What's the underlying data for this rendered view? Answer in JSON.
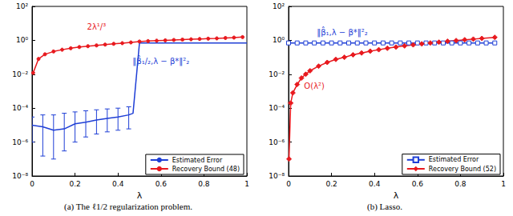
{
  "chart_data": [
    {
      "type": "line",
      "title": "(a) The ℓ1/2 regularization problem.",
      "x_label": "λ",
      "xlim": [
        0,
        1
      ],
      "xticks": [
        0,
        0.2,
        0.4,
        0.6,
        0.8,
        1
      ],
      "ylim": [
        1e-08,
        100
      ],
      "yticks": [
        {
          "value": 1e-08,
          "label": "10⁻⁸"
        },
        {
          "value": 1e-06,
          "label": "10⁻⁶"
        },
        {
          "value": 0.0001,
          "label": "10⁻⁴"
        },
        {
          "value": 0.01,
          "label": "10⁻²"
        },
        {
          "value": 1,
          "label": "10⁰"
        },
        {
          "value": 100,
          "label": "10²"
        }
      ],
      "log": "y",
      "grid": false,
      "legend": "lower right",
      "series": [
        {
          "name": "Estimated Error",
          "color": "#1f3fd6",
          "marker": "none",
          "line_style": "solid",
          "x": [
            0,
            0.05,
            0.1,
            0.15,
            0.2,
            0.25,
            0.3,
            0.35,
            0.4,
            0.45,
            0.47,
            0.5,
            0.55,
            0.6,
            0.65,
            0.7,
            0.75,
            0.8,
            0.85,
            0.9,
            0.95,
            1
          ],
          "values": [
            1e-05,
            8e-06,
            5e-06,
            6e-06,
            1.2e-05,
            1.5e-05,
            2e-05,
            2.5e-05,
            3e-05,
            4e-05,
            5e-05,
            0.7,
            0.7,
            0.7,
            0.7,
            0.7,
            0.7,
            0.7,
            0.7,
            0.7,
            0.7,
            0.7
          ],
          "error_lower": [
            1e-06,
            1.5e-07,
            1e-07,
            3e-07,
            1e-06,
            2e-06,
            3e-06,
            4e-06,
            5e-06,
            6e-06,
            null,
            null,
            null,
            null,
            null,
            null,
            null,
            null,
            null,
            null,
            null,
            null
          ],
          "error_upper": [
            3e-05,
            4e-05,
            4e-05,
            5e-05,
            6e-05,
            7e-05,
            8e-05,
            9e-05,
            0.0001,
            0.00012,
            null,
            null,
            null,
            null,
            null,
            null,
            null,
            null,
            null,
            null,
            null,
            null
          ]
        },
        {
          "name": "Recovery Bound (48)",
          "color": "#e8191e",
          "marker": "circle",
          "line_style": "solid",
          "x": [
            0.005,
            0.03,
            0.06,
            0.1,
            0.14,
            0.18,
            0.22,
            0.26,
            0.3,
            0.34,
            0.38,
            0.42,
            0.46,
            0.5,
            0.54,
            0.58,
            0.62,
            0.66,
            0.7,
            0.74,
            0.78,
            0.82,
            0.86,
            0.9,
            0.94,
            0.98
          ],
          "values": [
            0.012,
            0.08,
            0.15,
            0.22,
            0.28,
            0.34,
            0.4,
            0.45,
            0.5,
            0.56,
            0.62,
            0.68,
            0.75,
            0.85,
            0.9,
            0.95,
            1.0,
            1.05,
            1.1,
            1.15,
            1.2,
            1.25,
            1.3,
            1.38,
            1.45,
            1.55
          ]
        }
      ],
      "annotations": [
        {
          "text": "2λ¹/³",
          "x": 0.3,
          "y": 6,
          "color": "#e8191e"
        },
        {
          "text": "‖β̂₁/₂,λ − β*‖²₂",
          "x": 0.6,
          "y": 0.06,
          "color": "#1f3fd6"
        }
      ]
    },
    {
      "type": "line",
      "title": "(b) Lasso.",
      "x_label": "λ",
      "xlim": [
        0,
        1
      ],
      "xticks": [
        0,
        0.2,
        0.4,
        0.6,
        0.8,
        1
      ],
      "ylim": [
        1e-08,
        100
      ],
      "yticks": [
        {
          "value": 1e-08,
          "label": "10⁻⁸"
        },
        {
          "value": 1e-06,
          "label": "10⁻⁶"
        },
        {
          "value": 0.0001,
          "label": "10⁻⁴"
        },
        {
          "value": 0.01,
          "label": "10⁻²"
        },
        {
          "value": 1,
          "label": "10⁰"
        },
        {
          "value": 100,
          "label": "10²"
        }
      ],
      "log": "y",
      "grid": false,
      "legend": "lower right",
      "series": [
        {
          "name": "Estimated Error",
          "color": "#1f3fd6",
          "marker": "square",
          "line_style": "solid",
          "x": [
            0,
            0.04,
            0.08,
            0.12,
            0.16,
            0.2,
            0.24,
            0.28,
            0.32,
            0.36,
            0.4,
            0.44,
            0.48,
            0.52,
            0.56,
            0.6,
            0.64,
            0.68,
            0.72,
            0.76,
            0.8,
            0.84,
            0.88,
            0.92,
            0.96
          ],
          "values": [
            0.7,
            0.7,
            0.7,
            0.7,
            0.7,
            0.7,
            0.7,
            0.7,
            0.7,
            0.7,
            0.7,
            0.7,
            0.7,
            0.7,
            0.7,
            0.7,
            0.7,
            0.7,
            0.7,
            0.7,
            0.7,
            0.7,
            0.7,
            0.7,
            0.7
          ]
        },
        {
          "name": "Recovery Bound (52)",
          "color": "#e8191e",
          "marker": "diamond",
          "line_style": "solid",
          "x": [
            0.002,
            0.01,
            0.02,
            0.04,
            0.06,
            0.08,
            0.1,
            0.14,
            0.18,
            0.22,
            0.26,
            0.3,
            0.34,
            0.38,
            0.42,
            0.46,
            0.5,
            0.54,
            0.58,
            0.62,
            0.66,
            0.7,
            0.74,
            0.78,
            0.82,
            0.86,
            0.9,
            0.96
          ],
          "values": [
            1e-07,
            0.0002,
            0.0008,
            0.0025,
            0.006,
            0.01,
            0.016,
            0.03,
            0.05,
            0.075,
            0.1,
            0.14,
            0.18,
            0.23,
            0.28,
            0.34,
            0.4,
            0.47,
            0.54,
            0.62,
            0.7,
            0.78,
            0.88,
            0.97,
            1.08,
            1.18,
            1.3,
            1.5
          ]
        }
      ],
      "annotations": [
        {
          "text": "‖β̂₁,λ − β*‖²₂",
          "x": 0.25,
          "y": 3,
          "color": "#1f3fd6"
        },
        {
          "text": "O(λ²)",
          "x": 0.12,
          "y": 0.002,
          "color": "#e8191e"
        }
      ]
    }
  ]
}
